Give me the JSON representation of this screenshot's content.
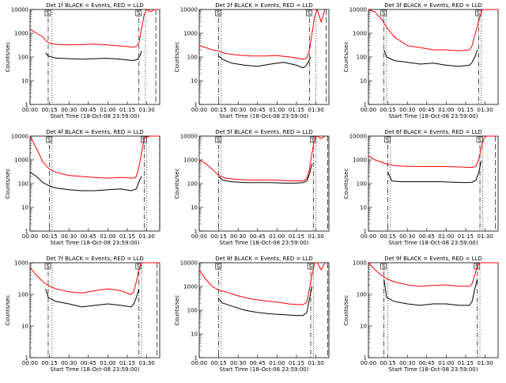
{
  "figure": {
    "ylabel": "Counts/sec",
    "xlabel": "Start Time (18-Oct-08 23:59:00)",
    "x_ticks": [
      "00:00",
      "00:15",
      "00:30",
      "00:45",
      "01:00",
      "01:15",
      "01:30"
    ],
    "y_ticks": [
      "1",
      "10",
      "100",
      "1000",
      "10000"
    ],
    "marker_labels": [
      "S",
      "S"
    ],
    "colors": {
      "events": "#000000",
      "lld": "#ff0000"
    }
  },
  "chart_data": [
    {
      "type": "line",
      "title": "Det 1f BLACK = Events, RED = LLD",
      "xlabel": "Start Time (18-Oct-08 23:59:00)",
      "ylabel": "Counts/sec",
      "x_unit": "minutes after 00:00",
      "xlim": [
        0,
        100
      ],
      "ylim": [
        1,
        10000
      ],
      "y_scale": "log",
      "series": [
        {
          "name": "Events",
          "color": "#000000",
          "x": [
            12,
            14,
            20,
            30,
            40,
            50,
            60,
            70,
            80,
            83,
            85,
            86
          ],
          "y": [
            150,
            110,
            90,
            85,
            80,
            85,
            88,
            80,
            70,
            80,
            120,
            180
          ]
        },
        {
          "name": "LLD",
          "color": "#ff0000",
          "x": [
            0,
            5,
            10,
            12,
            15,
            20,
            30,
            40,
            50,
            60,
            70,
            80,
            82,
            84,
            86,
            88,
            90,
            93,
            96,
            100
          ],
          "y": [
            1500,
            1000,
            700,
            500,
            380,
            340,
            320,
            330,
            350,
            320,
            290,
            260,
            280,
            400,
            1500,
            6000,
            10000,
            8000,
            10000,
            10000
          ]
        }
      ],
      "vlines": [
        {
          "x": 14,
          "style": "dash-dot"
        },
        {
          "x": 17,
          "style": "dotted"
        },
        {
          "x": 84,
          "style": "dash-dot"
        },
        {
          "x": 89,
          "style": "dotted"
        },
        {
          "x": 97,
          "style": "long-dash"
        }
      ]
    },
    {
      "type": "line",
      "title": "Det 2f BLACK = Events, RED = LLD",
      "xlabel": "Start Time (18-Oct-08 23:59:00)",
      "ylabel": "Counts/sec",
      "x_unit": "minutes after 00:00",
      "xlim": [
        0,
        100
      ],
      "ylim": [
        1,
        10000
      ],
      "y_scale": "log",
      "series": [
        {
          "name": "Events",
          "color": "#000000",
          "x": [
            15,
            18,
            25,
            35,
            45,
            55,
            65,
            75,
            80,
            82,
            84,
            86
          ],
          "y": [
            110,
            80,
            55,
            45,
            40,
            50,
            60,
            45,
            35,
            40,
            60,
            100
          ]
        },
        {
          "name": "LLD",
          "color": "#ff0000",
          "x": [
            0,
            5,
            10,
            15,
            20,
            30,
            40,
            50,
            60,
            70,
            80,
            83,
            85,
            87,
            89,
            91,
            94,
            97
          ],
          "y": [
            300,
            250,
            200,
            180,
            140,
            120,
            110,
            110,
            115,
            100,
            80,
            90,
            200,
            1000,
            5000,
            10000,
            3000,
            10000
          ]
        }
      ],
      "vlines": [
        {
          "x": 15,
          "style": "dash-dot"
        },
        {
          "x": 17,
          "style": "dotted"
        },
        {
          "x": 85,
          "style": "dash-dot"
        },
        {
          "x": 90,
          "style": "dotted"
        },
        {
          "x": 98,
          "style": "long-dash"
        }
      ]
    },
    {
      "type": "line",
      "title": "Det 3f BLACK = Events, RED = LLD",
      "xlabel": "Start Time (18-Oct-08 23:59:00)",
      "ylabel": "Counts/sec",
      "x_unit": "minutes after 00:00",
      "xlim": [
        0,
        100
      ],
      "ylim": [
        1,
        10000
      ],
      "y_scale": "log",
      "series": [
        {
          "name": "Events",
          "color": "#000000",
          "x": [
            12,
            14,
            20,
            30,
            40,
            50,
            60,
            70,
            78,
            80,
            82,
            84
          ],
          "y": [
            200,
            100,
            70,
            60,
            50,
            55,
            45,
            40,
            45,
            60,
            100,
            200
          ]
        },
        {
          "name": "LLD",
          "color": "#ff0000",
          "x": [
            0,
            5,
            10,
            15,
            20,
            30,
            40,
            50,
            60,
            70,
            78,
            80,
            82,
            84,
            86,
            88,
            92,
            96,
            100
          ],
          "y": [
            10000,
            8000,
            4000,
            1500,
            700,
            300,
            250,
            200,
            200,
            180,
            200,
            300,
            800,
            2000,
            5000,
            10000,
            10000,
            10000,
            10000
          ]
        }
      ],
      "vlines": [
        {
          "x": 12,
          "style": "dash-dot"
        },
        {
          "x": 14,
          "style": "dotted"
        },
        {
          "x": 85,
          "style": "dash-dot"
        },
        {
          "x": 87,
          "style": "dotted"
        }
      ]
    },
    {
      "type": "line",
      "title": "Det 4f BLACK = Events, RED = LLD",
      "xlabel": "Start Time (18-Oct-08 23:59:00)",
      "ylabel": "Counts/sec",
      "x_unit": "minutes after 00:00",
      "xlim": [
        0,
        100
      ],
      "ylim": [
        1,
        10000
      ],
      "y_scale": "log",
      "series": [
        {
          "name": "Events",
          "color": "#000000",
          "x": [
            0,
            5,
            10,
            15,
            20,
            30,
            40,
            50,
            60,
            70,
            78,
            82,
            84,
            86
          ],
          "y": [
            300,
            200,
            110,
            80,
            65,
            55,
            50,
            50,
            55,
            60,
            50,
            60,
            120,
            200
          ]
        },
        {
          "name": "LLD",
          "color": "#ff0000",
          "x": [
            0,
            5,
            10,
            15,
            20,
            30,
            40,
            50,
            60,
            70,
            80,
            82,
            84,
            86,
            88,
            92,
            96,
            100
          ],
          "y": [
            10000,
            3000,
            800,
            400,
            300,
            220,
            200,
            180,
            170,
            180,
            170,
            200,
            500,
            2000,
            8000,
            10000,
            10000,
            10000
          ]
        }
      ],
      "vlines": [
        {
          "x": 15,
          "style": "dash-dot"
        },
        {
          "x": 17,
          "style": "dotted"
        },
        {
          "x": 88,
          "style": "dash-dot"
        },
        {
          "x": 90,
          "style": "dotted"
        },
        {
          "x": 100,
          "style": "long-dash"
        }
      ]
    },
    {
      "type": "line",
      "title": "Det 5f BLACK = Events, RED = LLD",
      "xlabel": "Start Time (18-Oct-08 23:59:00)",
      "ylabel": "Counts/sec",
      "x_unit": "minutes after 00:00",
      "xlim": [
        0,
        100
      ],
      "ylim": [
        1,
        10000
      ],
      "y_scale": "log",
      "series": [
        {
          "name": "Events",
          "color": "#000000",
          "x": [
            15,
            18,
            25,
            35,
            45,
            55,
            65,
            75,
            80,
            83,
            85,
            87
          ],
          "y": [
            200,
            140,
            120,
            110,
            110,
            110,
            105,
            105,
            110,
            130,
            250,
            700
          ]
        },
        {
          "name": "LLD",
          "color": "#ff0000",
          "x": [
            0,
            5,
            10,
            15,
            20,
            30,
            40,
            50,
            60,
            70,
            80,
            83,
            85,
            87,
            89,
            91,
            94,
            97
          ],
          "y": [
            1000,
            700,
            400,
            220,
            170,
            150,
            140,
            140,
            140,
            130,
            130,
            160,
            400,
            2000,
            8000,
            10000,
            8000,
            10000
          ]
        }
      ],
      "vlines": [
        {
          "x": 15,
          "style": "dash-dot"
        },
        {
          "x": 17,
          "style": "dotted"
        },
        {
          "x": 88,
          "style": "dash-dot"
        },
        {
          "x": 90,
          "style": "dotted"
        },
        {
          "x": 99,
          "style": "long-dash"
        }
      ]
    },
    {
      "type": "line",
      "title": "Det 6f BLACK = Events, RED = LLD",
      "xlabel": "Start Time (18-Oct-08 23:59:00)",
      "ylabel": "Counts/sec",
      "x_unit": "minutes after 00:00",
      "xlim": [
        0,
        100
      ],
      "ylim": [
        1,
        10000
      ],
      "y_scale": "log",
      "series": [
        {
          "name": "Events",
          "color": "#000000",
          "x": [
            15,
            18,
            25,
            35,
            45,
            55,
            65,
            75,
            80,
            83,
            85,
            87
          ],
          "y": [
            300,
            130,
            120,
            120,
            120,
            120,
            115,
            110,
            115,
            140,
            280,
            900
          ]
        },
        {
          "name": "LLD",
          "color": "#ff0000",
          "x": [
            0,
            5,
            10,
            15,
            20,
            30,
            40,
            50,
            60,
            70,
            80,
            83,
            85,
            87,
            89,
            91,
            94,
            97,
            100
          ],
          "y": [
            1500,
            1000,
            800,
            650,
            570,
            530,
            520,
            520,
            520,
            500,
            480,
            550,
            1000,
            3000,
            8000,
            10000,
            10000,
            10000,
            10000
          ]
        }
      ],
      "vlines": [
        {
          "x": 15,
          "style": "dash-dot"
        },
        {
          "x": 17,
          "style": "dotted"
        },
        {
          "x": 86,
          "style": "dash-dot"
        },
        {
          "x": 88,
          "style": "dotted"
        },
        {
          "x": 98,
          "style": "long-dash"
        }
      ]
    },
    {
      "type": "line",
      "title": "Det 7f BLACK = Events, RED = LLD",
      "xlabel": "Start Time (18-Oct-08 23:59:00)",
      "ylabel": "Counts/sec",
      "x_unit": "minutes after 00:00",
      "xlim": [
        0,
        100
      ],
      "ylim": [
        1,
        1000
      ],
      "y_scale": "log",
      "series": [
        {
          "name": "Events",
          "color": "#000000",
          "x": [
            12,
            14,
            20,
            30,
            40,
            50,
            60,
            70,
            78,
            80,
            82,
            84
          ],
          "y": [
            150,
            80,
            60,
            50,
            40,
            45,
            50,
            45,
            40,
            50,
            80,
            150
          ]
        },
        {
          "name": "LLD",
          "color": "#ff0000",
          "x": [
            0,
            5,
            10,
            15,
            20,
            30,
            40,
            50,
            60,
            70,
            78,
            80,
            82,
            84,
            86,
            88,
            92,
            96,
            100
          ],
          "y": [
            700,
            400,
            250,
            180,
            150,
            120,
            110,
            130,
            150,
            130,
            100,
            120,
            250,
            600,
            1000,
            1000,
            1000,
            1000,
            1000
          ]
        }
      ],
      "vlines": [
        {
          "x": 14,
          "style": "dash-dot"
        },
        {
          "x": 17,
          "style": "dotted"
        },
        {
          "x": 84,
          "style": "dash-dot"
        },
        {
          "x": 86,
          "style": "dotted"
        },
        {
          "x": 98,
          "style": "long-dash"
        }
      ]
    },
    {
      "type": "line",
      "title": "Det 8f BLACK = Events, RED = LLD",
      "xlabel": "Start Time (18-Oct-08 23:59:00)",
      "ylabel": "Counts/sec",
      "x_unit": "minutes after 00:00",
      "xlim": [
        0,
        100
      ],
      "ylim": [
        1,
        10000
      ],
      "y_scale": "log",
      "series": [
        {
          "name": "Events",
          "color": "#000000",
          "x": [
            15,
            18,
            25,
            35,
            45,
            55,
            65,
            75,
            80,
            83,
            85,
            87
          ],
          "y": [
            300,
            200,
            150,
            100,
            80,
            70,
            65,
            60,
            60,
            80,
            300,
            1000
          ]
        },
        {
          "name": "LLD",
          "color": "#ff0000",
          "x": [
            0,
            5,
            10,
            15,
            20,
            30,
            40,
            50,
            60,
            70,
            80,
            83,
            85,
            87,
            89,
            91,
            94,
            97
          ],
          "y": [
            5000,
            2000,
            1000,
            700,
            600,
            400,
            300,
            250,
            220,
            180,
            170,
            220,
            800,
            3000,
            10000,
            10000,
            5000,
            10000
          ]
        }
      ],
      "vlines": [
        {
          "x": 15,
          "style": "dash-dot"
        },
        {
          "x": 17,
          "style": "dotted"
        },
        {
          "x": 86,
          "style": "dash-dot"
        },
        {
          "x": 88,
          "style": "dotted"
        },
        {
          "x": 99,
          "style": "long-dash"
        }
      ]
    },
    {
      "type": "line",
      "title": "Det 9f BLACK = Events, RED = LLD",
      "xlabel": "Start Time (18-Oct-08 23:59:00)",
      "ylabel": "Counts/sec",
      "x_unit": "minutes after 00:00",
      "xlim": [
        0,
        100
      ],
      "ylim": [
        1,
        1000
      ],
      "y_scale": "log",
      "series": [
        {
          "name": "Events",
          "color": "#000000",
          "x": [
            12,
            14,
            20,
            30,
            40,
            50,
            60,
            70,
            78,
            80,
            82,
            84
          ],
          "y": [
            300,
            80,
            60,
            50,
            45,
            50,
            50,
            45,
            45,
            60,
            150,
            300
          ]
        },
        {
          "name": "LLD",
          "color": "#ff0000",
          "x": [
            0,
            5,
            10,
            15,
            20,
            30,
            40,
            50,
            60,
            70,
            78,
            80,
            82,
            84,
            86,
            88,
            92,
            96,
            100
          ],
          "y": [
            1000,
            600,
            400,
            300,
            250,
            200,
            180,
            190,
            200,
            180,
            180,
            220,
            400,
            800,
            1000,
            1000,
            1000,
            1000,
            1000
          ]
        }
      ],
      "vlines": [
        {
          "x": 12,
          "style": "dash-dot"
        },
        {
          "x": 15,
          "style": "dotted"
        },
        {
          "x": 84,
          "style": "dash-dot"
        },
        {
          "x": 86,
          "style": "dotted"
        }
      ]
    }
  ]
}
